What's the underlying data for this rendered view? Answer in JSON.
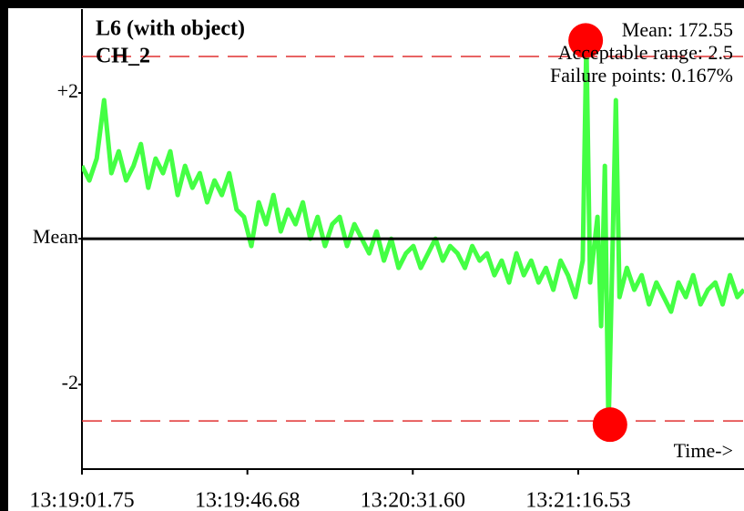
{
  "chart_data": {
    "type": "line",
    "title": "L6 (with object)",
    "subtitle": "CH_2",
    "annotations": [
      "Mean: 172.55",
      "Acceptable range: 2.5",
      "Failure points: 0.167%"
    ],
    "x_label": "Time->",
    "color": "#44ff44",
    "x": [
      0,
      2,
      4,
      6,
      8,
      10,
      12,
      14,
      16,
      18,
      20,
      22,
      24,
      26,
      28,
      30,
      32,
      34,
      36,
      38,
      40,
      42,
      44,
      46,
      48,
      50,
      52,
      54,
      56,
      58,
      60,
      62,
      64,
      66,
      68,
      70,
      72,
      74,
      76,
      78,
      80,
      82,
      84,
      86,
      88,
      90,
      92,
      94,
      96,
      98,
      100,
      102,
      104,
      106,
      108,
      110,
      112,
      114,
      116,
      118,
      120,
      122,
      124,
      126,
      128,
      130,
      132,
      134,
      136,
      137,
      138,
      140,
      141,
      142,
      143,
      144,
      145,
      146,
      148,
      150,
      152,
      154,
      156,
      158,
      160,
      162,
      164,
      166,
      168,
      170,
      172,
      174,
      176,
      178,
      179.8
    ],
    "values": [
      1.0,
      0.8,
      1.1,
      1.9,
      0.9,
      1.2,
      0.8,
      1.0,
      1.3,
      0.7,
      1.1,
      0.9,
      1.2,
      0.6,
      1.0,
      0.7,
      0.9,
      0.5,
      0.8,
      0.6,
      0.9,
      0.4,
      0.3,
      -0.1,
      0.5,
      0.2,
      0.6,
      0.1,
      0.4,
      0.2,
      0.5,
      0.0,
      0.3,
      -0.1,
      0.2,
      0.3,
      -0.1,
      0.2,
      0.0,
      -0.2,
      0.1,
      -0.3,
      0.0,
      -0.4,
      -0.2,
      -0.1,
      -0.4,
      -0.2,
      0.0,
      -0.3,
      -0.1,
      -0.2,
      -0.4,
      -0.1,
      -0.3,
      -0.2,
      -0.5,
      -0.3,
      -0.6,
      -0.2,
      -0.5,
      -0.3,
      -0.6,
      -0.4,
      -0.7,
      -0.3,
      -0.5,
      -0.8,
      -0.3,
      2.7,
      -0.6,
      0.3,
      -1.2,
      1.0,
      -2.6,
      -0.4,
      1.9,
      -0.8,
      -0.4,
      -0.7,
      -0.5,
      -0.9,
      -0.6,
      -0.8,
      -1.0,
      -0.6,
      -0.8,
      -0.5,
      -0.9,
      -0.7,
      -0.6,
      -0.9,
      -0.5,
      -0.8,
      -0.7
    ],
    "failure_points": {
      "color": "#ff0000",
      "x": [
        136.8,
        143.4
      ],
      "values": [
        2.72,
        -2.55
      ]
    },
    "range_lines": [
      2.5,
      -2.5
    ],
    "mean_line": 0,
    "xlim": [
      0,
      179.8
    ],
    "ylim": [
      -3.16,
      3.15
    ],
    "xticks": [
      {
        "value": 0,
        "label": "13:19:01.75"
      },
      {
        "value": 44.93,
        "label": "13:19:46.68"
      },
      {
        "value": 89.85,
        "label": "13:20:31.60"
      },
      {
        "value": 134.78,
        "label": "13:21:16.53"
      }
    ],
    "yticks": [
      {
        "value": 2,
        "label": "+2"
      },
      {
        "value": 0,
        "label": "Mean"
      },
      -2
    ]
  }
}
